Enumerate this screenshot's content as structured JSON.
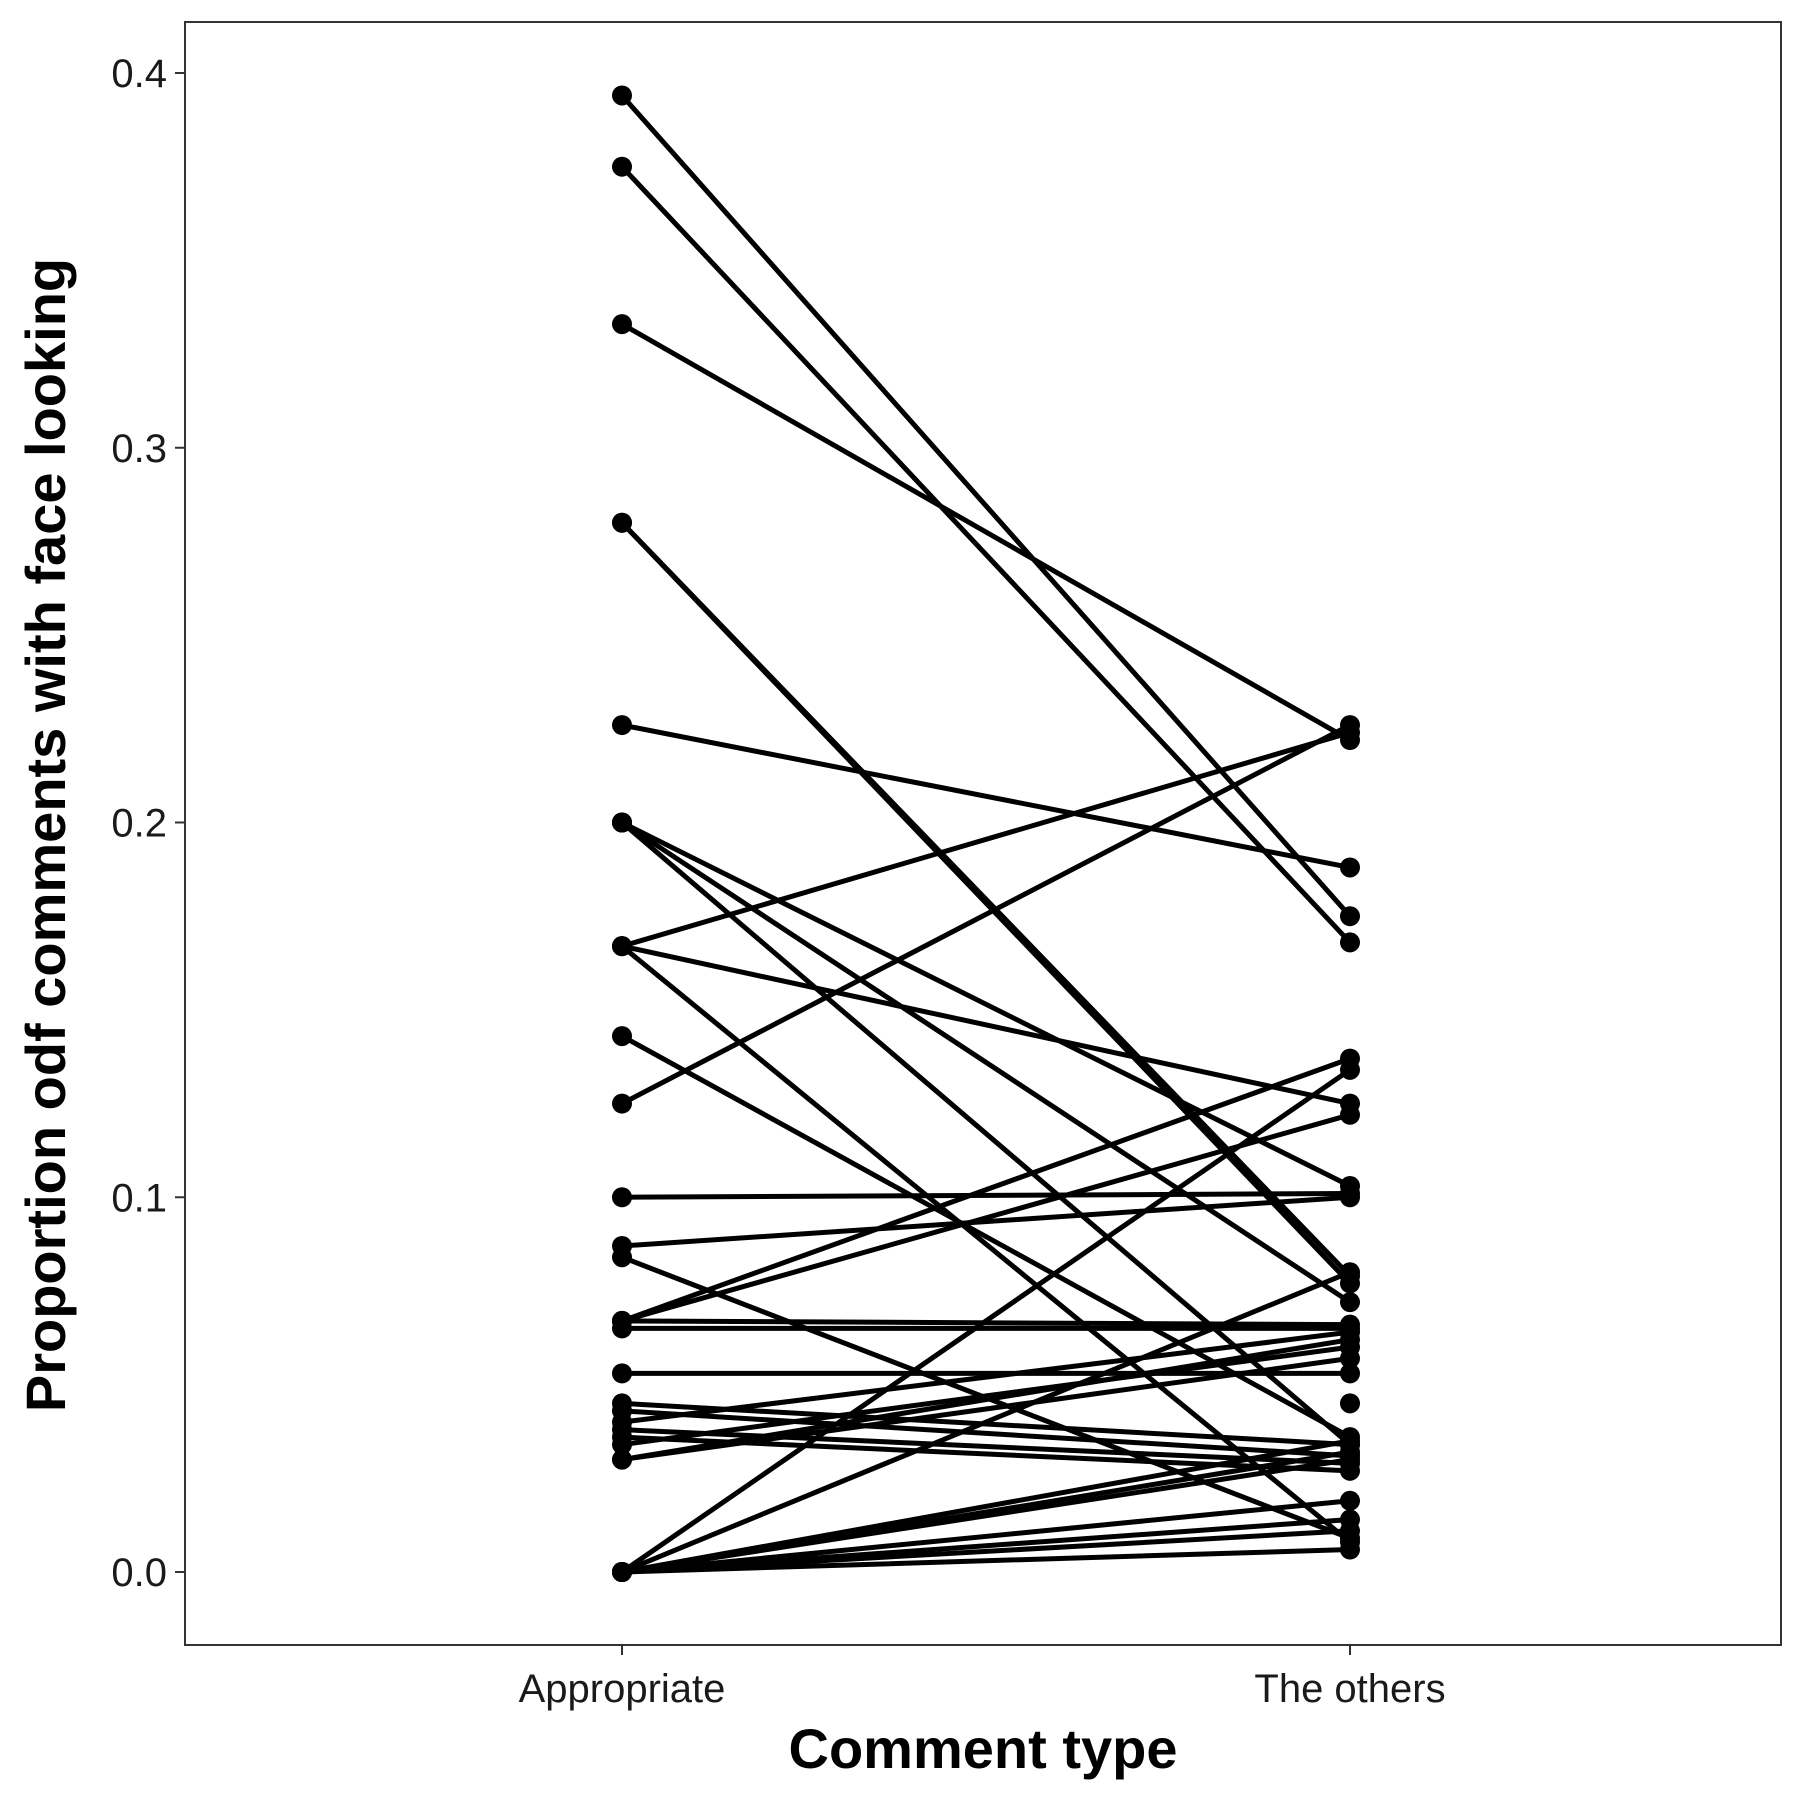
{
  "chart_data": {
    "type": "line",
    "title": "",
    "xlabel": "Comment type",
    "ylabel": "Proportion odf comments with face looking",
    "categories": [
      "Appropriate",
      "The others"
    ],
    "ylim": [
      -0.02,
      0.42
    ],
    "yticks": [
      0.0,
      0.1,
      0.2,
      0.3,
      0.4
    ],
    "ytick_labels": [
      "0.0",
      "0.1",
      "0.2",
      "0.3",
      "0.4"
    ],
    "grid": false,
    "legend": "none",
    "line_color": "#000000",
    "point_color": "#000000",
    "series": [
      {
        "values": [
          0.394,
          0.175
        ]
      },
      {
        "values": [
          0.375,
          0.168
        ]
      },
      {
        "values": [
          0.333,
          0.222
        ]
      },
      {
        "values": [
          0.28,
          0.079
        ]
      },
      {
        "values": [
          0.28,
          0.077
        ]
      },
      {
        "values": [
          0.226,
          0.188
        ]
      },
      {
        "values": [
          0.2,
          0.103
        ]
      },
      {
        "values": [
          0.2,
          0.072
        ]
      },
      {
        "values": [
          0.2,
          0.034
        ]
      },
      {
        "values": [
          0.167,
          0.224
        ]
      },
      {
        "values": [
          0.167,
          0.125
        ]
      },
      {
        "values": [
          0.167,
          0.008
        ]
      },
      {
        "values": [
          0.143,
          0.036
        ]
      },
      {
        "values": [
          0.125,
          0.226
        ]
      },
      {
        "values": [
          0.1,
          0.101
        ]
      },
      {
        "values": [
          0.087,
          0.1
        ]
      },
      {
        "values": [
          0.084,
          0.009
        ]
      },
      {
        "values": [
          0.067,
          0.137
        ]
      },
      {
        "values": [
          0.067,
          0.122
        ]
      },
      {
        "values": [
          0.067,
          0.066
        ]
      },
      {
        "values": [
          0.065,
          0.065
        ]
      },
      {
        "values": [
          0.053,
          0.053
        ]
      },
      {
        "values": [
          0.045,
          0.034
        ]
      },
      {
        "values": [
          0.043,
          0.031
        ]
      },
      {
        "values": [
          0.04,
          0.064
        ]
      },
      {
        "values": [
          0.038,
          0.029
        ]
      },
      {
        "values": [
          0.036,
          0.027
        ]
      },
      {
        "values": [
          0.034,
          0.06
        ]
      },
      {
        "values": [
          0.03,
          0.057
        ]
      },
      {
        "values": [
          0.03,
          0.062
        ]
      },
      {
        "values": [
          0.0,
          0.134
        ]
      },
      {
        "values": [
          0.0,
          0.08
        ]
      },
      {
        "values": [
          0.0,
          0.035
        ]
      },
      {
        "values": [
          0.0,
          0.032
        ]
      },
      {
        "values": [
          0.0,
          0.03
        ]
      },
      {
        "values": [
          0.0,
          0.019
        ]
      },
      {
        "values": [
          0.0,
          0.014
        ]
      },
      {
        "values": [
          0.0,
          0.011
        ]
      },
      {
        "values": [
          0.0,
          0.006
        ]
      }
    ],
    "extra_points": [
      {
        "category": "The others",
        "value": 0.045
      }
    ]
  }
}
